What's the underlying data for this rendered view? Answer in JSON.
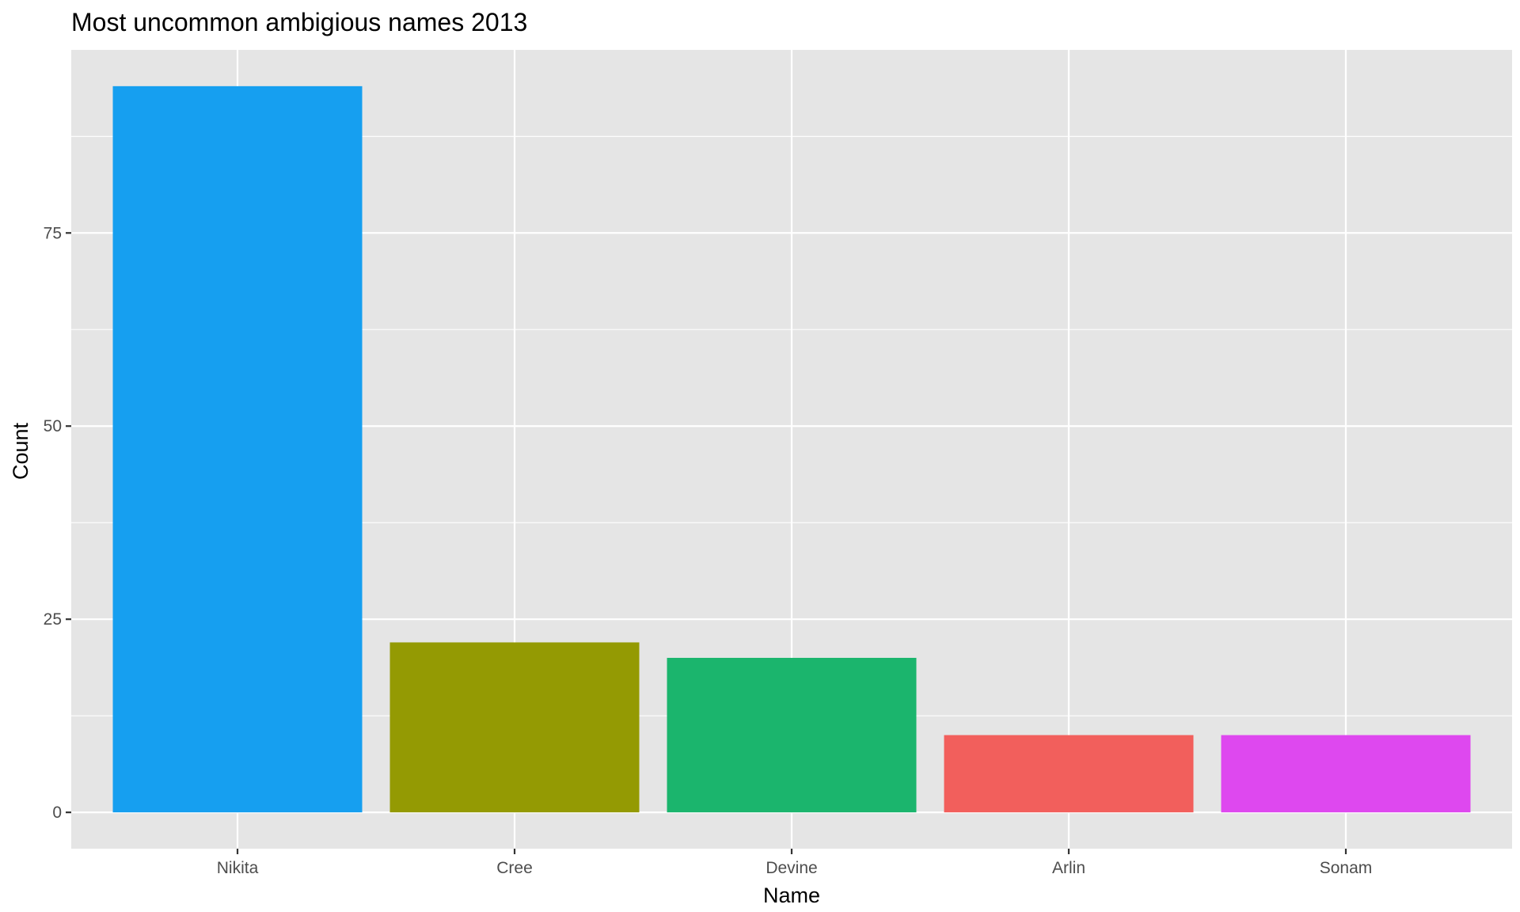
{
  "chart_data": {
    "type": "bar",
    "title": "Most uncommon ambigious names 2013",
    "xlabel": "Name",
    "ylabel": "Count",
    "categories": [
      "Nikita",
      "Cree",
      "Devine",
      "Arlin",
      "Sonam"
    ],
    "values": [
      94,
      22,
      20,
      10,
      10
    ],
    "colors": [
      "#169FF0",
      "#949A03",
      "#1BB56D",
      "#F25F5C",
      "#DE48EF"
    ],
    "y_ticks": [
      0,
      25,
      50,
      75
    ],
    "ylim": [
      -4.7,
      98.7
    ],
    "grid": true,
    "legend": "none",
    "panel_background": "#E5E5E5",
    "gridline_color": "#FFFFFF",
    "tick_label_color": "#4D4D4D"
  }
}
